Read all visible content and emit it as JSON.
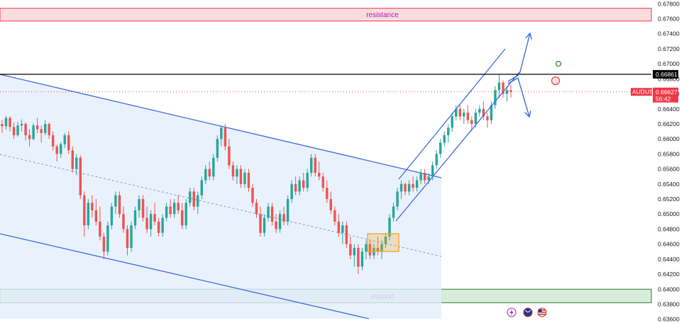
{
  "chart_data": {
    "type": "candlestick",
    "symbol": "AUDUSD",
    "y_axis": {
      "side": "right",
      "ticks": [
        "0.67800",
        "0.67600",
        "0.67400",
        "0.67200",
        "0.67000",
        "0.66800",
        "0.66600",
        "0.66400",
        "0.66200",
        "0.66000",
        "0.65800",
        "0.65600",
        "0.65400",
        "0.65200",
        "0.65000",
        "0.64800",
        "0.64600",
        "0.64400",
        "0.64200",
        "0.64000",
        "0.63800",
        "0.63600"
      ],
      "range": [
        0.6355,
        0.6785
      ]
    },
    "price_tags": {
      "line_level": {
        "value": 0.66861,
        "label": "0.66861",
        "color": "#000000"
      },
      "current": {
        "value": 0.66627,
        "label": "0.66627",
        "countdown": "56:42",
        "symbol": "AUDUSD",
        "color": "#f23645"
      }
    },
    "zones": [
      {
        "name": "resistance",
        "low": 0.6757,
        "high": 0.6774,
        "color": "#f23645"
      },
      {
        "name": "support",
        "low": 0.6382,
        "high": 0.64,
        "color": "#2e7d32"
      }
    ],
    "candles": [
      [
        0.662,
        0.6625,
        0.6608,
        0.6617
      ],
      [
        0.6617,
        0.6631,
        0.6612,
        0.6628
      ],
      [
        0.6628,
        0.663,
        0.661,
        0.6616
      ],
      [
        0.6616,
        0.6622,
        0.66,
        0.6605
      ],
      [
        0.6605,
        0.6623,
        0.6603,
        0.6618
      ],
      [
        0.6618,
        0.6626,
        0.661,
        0.662
      ],
      [
        0.662,
        0.6622,
        0.6598,
        0.6605
      ],
      [
        0.6605,
        0.6613,
        0.659,
        0.66
      ],
      [
        0.66,
        0.6621,
        0.6598,
        0.6618
      ],
      [
        0.6618,
        0.6628,
        0.6608,
        0.6613
      ],
      [
        0.6613,
        0.6618,
        0.6595,
        0.6608
      ],
      [
        0.6608,
        0.6625,
        0.6605,
        0.662
      ],
      [
        0.662,
        0.6622,
        0.66,
        0.6605
      ],
      [
        0.6605,
        0.661,
        0.6585,
        0.659
      ],
      [
        0.659,
        0.6592,
        0.657,
        0.658
      ],
      [
        0.658,
        0.6596,
        0.6575,
        0.6593
      ],
      [
        0.6593,
        0.6608,
        0.6588,
        0.6605
      ],
      [
        0.6605,
        0.661,
        0.658,
        0.6585
      ],
      [
        0.6585,
        0.659,
        0.6555,
        0.656
      ],
      [
        0.656,
        0.658,
        0.6552,
        0.6575
      ],
      [
        0.6575,
        0.6578,
        0.652,
        0.6525
      ],
      [
        0.6525,
        0.653,
        0.647,
        0.6485
      ],
      [
        0.6485,
        0.652,
        0.648,
        0.6515
      ],
      [
        0.6515,
        0.6525,
        0.6495,
        0.6505
      ],
      [
        0.6505,
        0.652,
        0.6485,
        0.649
      ],
      [
        0.649,
        0.651,
        0.6465,
        0.647
      ],
      [
        0.647,
        0.6475,
        0.644,
        0.645
      ],
      [
        0.645,
        0.649,
        0.6445,
        0.6485
      ],
      [
        0.6485,
        0.6515,
        0.648,
        0.651
      ],
      [
        0.651,
        0.653,
        0.65,
        0.6525
      ],
      [
        0.6525,
        0.653,
        0.6495,
        0.65
      ],
      [
        0.65,
        0.651,
        0.6475,
        0.648
      ],
      [
        0.648,
        0.6485,
        0.6445,
        0.6455
      ],
      [
        0.6455,
        0.649,
        0.645,
        0.6485
      ],
      [
        0.6485,
        0.651,
        0.648,
        0.6505
      ],
      [
        0.6505,
        0.6525,
        0.6495,
        0.652
      ],
      [
        0.652,
        0.6525,
        0.649,
        0.6495
      ],
      [
        0.6495,
        0.651,
        0.6475,
        0.648
      ],
      [
        0.648,
        0.6505,
        0.647,
        0.65
      ],
      [
        0.65,
        0.6515,
        0.6485,
        0.649
      ],
      [
        0.649,
        0.6495,
        0.647,
        0.6475
      ],
      [
        0.6475,
        0.65,
        0.647,
        0.6495
      ],
      [
        0.6495,
        0.6515,
        0.649,
        0.651
      ],
      [
        0.651,
        0.652,
        0.6495,
        0.65
      ],
      [
        0.65,
        0.652,
        0.6495,
        0.6515
      ],
      [
        0.6515,
        0.6525,
        0.65,
        0.6505
      ],
      [
        0.6505,
        0.6515,
        0.648,
        0.6485
      ],
      [
        0.6485,
        0.652,
        0.648,
        0.6515
      ],
      [
        0.6515,
        0.6535,
        0.651,
        0.653
      ],
      [
        0.653,
        0.6535,
        0.6505,
        0.651
      ],
      [
        0.651,
        0.653,
        0.65,
        0.6525
      ],
      [
        0.6525,
        0.655,
        0.652,
        0.6545
      ],
      [
        0.6545,
        0.6565,
        0.654,
        0.656
      ],
      [
        0.656,
        0.657,
        0.6545,
        0.655
      ],
      [
        0.655,
        0.658,
        0.6545,
        0.6575
      ],
      [
        0.6575,
        0.6605,
        0.657,
        0.66
      ],
      [
        0.66,
        0.6618,
        0.659,
        0.6615
      ],
      [
        0.6615,
        0.662,
        0.6585,
        0.659
      ],
      [
        0.659,
        0.66,
        0.656,
        0.6565
      ],
      [
        0.6565,
        0.657,
        0.6545,
        0.655
      ],
      [
        0.655,
        0.6565,
        0.654,
        0.656
      ],
      [
        0.656,
        0.6565,
        0.6535,
        0.654
      ],
      [
        0.654,
        0.656,
        0.6535,
        0.6555
      ],
      [
        0.6555,
        0.656,
        0.653,
        0.6535
      ],
      [
        0.6535,
        0.654,
        0.651,
        0.6515
      ],
      [
        0.6515,
        0.652,
        0.6495,
        0.65
      ],
      [
        0.65,
        0.651,
        0.647,
        0.6475
      ],
      [
        0.6475,
        0.65,
        0.647,
        0.6495
      ],
      [
        0.6495,
        0.6515,
        0.649,
        0.651
      ],
      [
        0.651,
        0.6515,
        0.6485,
        0.649
      ],
      [
        0.649,
        0.65,
        0.6475,
        0.648
      ],
      [
        0.648,
        0.6505,
        0.6475,
        0.65
      ],
      [
        0.65,
        0.651,
        0.6485,
        0.649
      ],
      [
        0.649,
        0.6525,
        0.6485,
        0.652
      ],
      [
        0.652,
        0.6545,
        0.6515,
        0.654
      ],
      [
        0.654,
        0.655,
        0.6525,
        0.653
      ],
      [
        0.653,
        0.655,
        0.6525,
        0.6545
      ],
      [
        0.6545,
        0.6555,
        0.653,
        0.6535
      ],
      [
        0.6535,
        0.656,
        0.653,
        0.6555
      ],
      [
        0.6555,
        0.658,
        0.655,
        0.6575
      ],
      [
        0.6575,
        0.658,
        0.655,
        0.6555
      ],
      [
        0.6555,
        0.657,
        0.6545,
        0.655
      ],
      [
        0.655,
        0.6555,
        0.653,
        0.6535
      ],
      [
        0.6535,
        0.6545,
        0.6515,
        0.652
      ],
      [
        0.652,
        0.653,
        0.65,
        0.6505
      ],
      [
        0.6505,
        0.651,
        0.6485,
        0.649
      ],
      [
        0.649,
        0.65,
        0.647,
        0.6475
      ],
      [
        0.6475,
        0.649,
        0.646,
        0.6485
      ],
      [
        0.6485,
        0.649,
        0.6455,
        0.646
      ],
      [
        0.646,
        0.647,
        0.644,
        0.6445
      ],
      [
        0.6445,
        0.646,
        0.643,
        0.6455
      ],
      [
        0.6455,
        0.646,
        0.642,
        0.643
      ],
      [
        0.643,
        0.6455,
        0.6425,
        0.645
      ],
      [
        0.645,
        0.6465,
        0.644,
        0.646
      ],
      [
        0.646,
        0.6465,
        0.644,
        0.6445
      ],
      [
        0.6445,
        0.646,
        0.644,
        0.6455
      ],
      [
        0.6455,
        0.647,
        0.6445,
        0.645
      ],
      [
        0.645,
        0.6465,
        0.644,
        0.646
      ],
      [
        0.646,
        0.6475,
        0.6455,
        0.647
      ],
      [
        0.647,
        0.65,
        0.6465,
        0.6495
      ],
      [
        0.6495,
        0.6515,
        0.649,
        0.651
      ],
      [
        0.651,
        0.6535,
        0.6505,
        0.653
      ],
      [
        0.653,
        0.6545,
        0.652,
        0.654
      ],
      [
        0.654,
        0.6542,
        0.6525,
        0.653
      ],
      [
        0.653,
        0.6545,
        0.6525,
        0.654
      ],
      [
        0.654,
        0.655,
        0.653,
        0.6535
      ],
      [
        0.6535,
        0.655,
        0.653,
        0.6545
      ],
      [
        0.6545,
        0.656,
        0.654,
        0.6555
      ],
      [
        0.6555,
        0.656,
        0.654,
        0.6545
      ],
      [
        0.6545,
        0.6555,
        0.654,
        0.655
      ],
      [
        0.655,
        0.657,
        0.6545,
        0.6565
      ],
      [
        0.6565,
        0.6585,
        0.656,
        0.658
      ],
      [
        0.658,
        0.66,
        0.6575,
        0.6595
      ],
      [
        0.6595,
        0.661,
        0.659,
        0.6605
      ],
      [
        0.6605,
        0.662,
        0.6595,
        0.6615
      ],
      [
        0.6615,
        0.6635,
        0.661,
        0.663
      ],
      [
        0.663,
        0.6645,
        0.6625,
        0.664
      ],
      [
        0.664,
        0.6645,
        0.6625,
        0.663
      ],
      [
        0.663,
        0.664,
        0.662,
        0.6635
      ],
      [
        0.6635,
        0.6645,
        0.662,
        0.6625
      ],
      [
        0.6625,
        0.663,
        0.661,
        0.662
      ],
      [
        0.662,
        0.664,
        0.6615,
        0.6635
      ],
      [
        0.6635,
        0.6645,
        0.663,
        0.664
      ],
      [
        0.664,
        0.665,
        0.6625,
        0.663
      ],
      [
        0.663,
        0.6635,
        0.6615,
        0.6625
      ],
      [
        0.6625,
        0.665,
        0.662,
        0.6645
      ],
      [
        0.6645,
        0.667,
        0.664,
        0.6665
      ],
      [
        0.6665,
        0.6685,
        0.6655,
        0.6675
      ],
      [
        0.6675,
        0.6678,
        0.6655,
        0.666
      ],
      [
        0.666,
        0.667,
        0.665,
        0.6665
      ],
      [
        0.6665,
        0.6672,
        0.6655,
        0.66627
      ]
    ],
    "annotations": {
      "descending_channel": "blue parallel lines with light-blue fill",
      "ascending_channel": "blue parallel lines",
      "consolidation_box": "orange rectangle",
      "arrows": [
        "up",
        "down"
      ],
      "dots": [
        {
          "color": "#2e7d32"
        },
        {
          "color": "#f23645"
        }
      ]
    },
    "colors": {
      "up": "#26a69a",
      "down": "#ef5350",
      "channel": "#3d6de0",
      "channel_fill": "#e3edfb",
      "box": "#f5a623"
    },
    "grid": false,
    "bottom_icons": [
      "lightning-icon",
      "flag-au-icon",
      "flag-us-icon"
    ]
  }
}
